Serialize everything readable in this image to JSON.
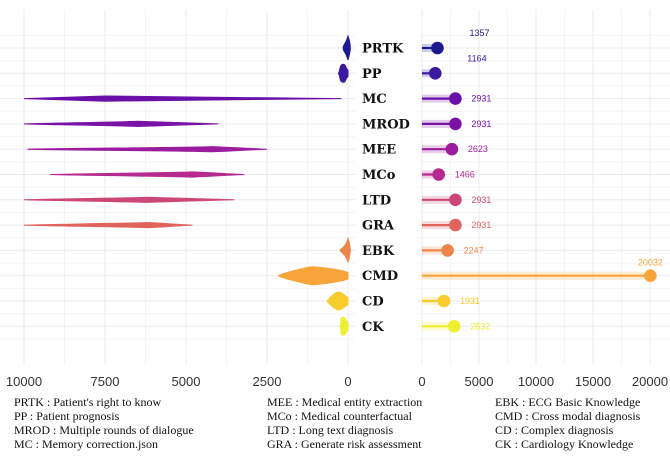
{
  "chart_data": {
    "type": "violin-lollipop",
    "categories": [
      {
        "code": "PRTK",
        "color": "#1b1b8f",
        "count": 1357
      },
      {
        "code": "PP",
        "color": "#3a1aa0",
        "count": 1164
      },
      {
        "code": "MC",
        "color": "#6a10a8",
        "count": 2931
      },
      {
        "code": "MROD",
        "color": "#7a12a6",
        "count": 2931
      },
      {
        "code": "MEE",
        "color": "#9b1c9e",
        "count": 2623
      },
      {
        "code": "MCo",
        "color": "#b52a8e",
        "count": 1466
      },
      {
        "code": "LTD",
        "color": "#cc4778",
        "count": 2931
      },
      {
        "code": "GRA",
        "color": "#e0645e",
        "count": 2931
      },
      {
        "code": "EBK",
        "color": "#ee844a",
        "count": 2247
      },
      {
        "code": "CMD",
        "color": "#f7a43a",
        "count": 20032
      },
      {
        "code": "CD",
        "color": "#f8cc2c",
        "count": 1931
      },
      {
        "code": "CK",
        "color": "#f0ee30",
        "count": 2832
      }
    ],
    "left_axis": {
      "range": [
        0,
        10000
      ],
      "ticks": [
        10000,
        7500,
        5000,
        2500,
        0
      ],
      "reversed": true
    },
    "right_axis": {
      "range": [
        0,
        20000
      ],
      "ticks": [
        0,
        5000,
        10000,
        15000,
        20000
      ]
    },
    "violins": [
      {
        "code": "PRTK",
        "min": 0,
        "max": 150,
        "peak": 70,
        "shape": "spike"
      },
      {
        "code": "PP",
        "min": 0,
        "max": 300,
        "peak": 150,
        "shape": "blob"
      },
      {
        "code": "MC",
        "min": 200,
        "max": 10000,
        "peak": 7500,
        "shape": "long"
      },
      {
        "code": "MROD",
        "min": 4000,
        "max": 10000,
        "peak": 6500,
        "shape": "long"
      },
      {
        "code": "MEE",
        "min": 2500,
        "max": 9900,
        "peak": 4200,
        "shape": "long"
      },
      {
        "code": "MCo",
        "min": 3200,
        "max": 9200,
        "peak": 4800,
        "shape": "long"
      },
      {
        "code": "LTD",
        "min": 3500,
        "max": 10000,
        "peak": 6200,
        "shape": "long"
      },
      {
        "code": "GRA",
        "min": 4800,
        "max": 10000,
        "peak": 6200,
        "shape": "long"
      },
      {
        "code": "EBK",
        "min": 0,
        "max": 250,
        "peak": 80,
        "shape": "spike"
      },
      {
        "code": "CMD",
        "min": 0,
        "max": 2150,
        "peak": 1100,
        "shape": "blob"
      },
      {
        "code": "CD",
        "min": 0,
        "max": 650,
        "peak": 300,
        "shape": "blob"
      },
      {
        "code": "CK",
        "min": 0,
        "max": 250,
        "peak": 150,
        "shape": "blob"
      }
    ],
    "legend_columns": [
      [
        "PRTK : Patient's right to know",
        "PP : Patient prognosis",
        "MROD : Multiple rounds of dialogue",
        "MC : Memory correction.json"
      ],
      [
        "MEE : Medical entity extraction",
        "MCo : Medical counterfactual",
        "LTD : Long text diagnosis",
        "GRA : Generate risk assessment"
      ],
      [
        "EBK : ECG Basic Knowledge",
        "CMD : Cross modal diagnosis",
        "CD : Complex diagnosis",
        "CK : Cardiology Knowledge"
      ]
    ],
    "grid": true
  }
}
